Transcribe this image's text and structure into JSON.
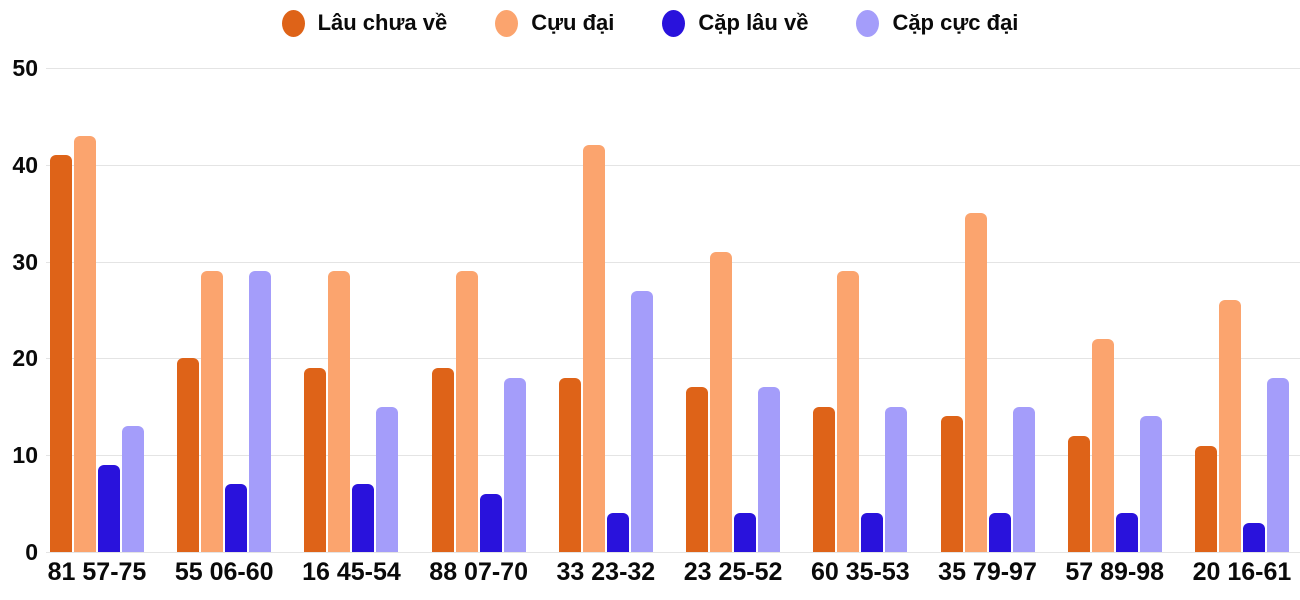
{
  "chart_data": {
    "type": "bar",
    "title": "",
    "xlabel": "",
    "ylabel": "",
    "categories": [
      "81 57-75",
      "55 06-60",
      "16 45-54",
      "88 07-70",
      "33 23-32",
      "23 25-52",
      "60 35-53",
      "35 79-97",
      "57 89-98",
      "20 16-61"
    ],
    "series": [
      {
        "name": "Lâu chưa về",
        "color": "#DE6318",
        "values": [
          41,
          20,
          19,
          19,
          18,
          17,
          15,
          14,
          12,
          11
        ]
      },
      {
        "name": "Cựu đại",
        "color": "#FBA46E",
        "values": [
          43,
          29,
          29,
          29,
          42,
          31,
          29,
          35,
          22,
          26
        ]
      },
      {
        "name": "Cặp lâu về",
        "color": "#2912DC",
        "values": [
          9,
          7,
          7,
          6,
          4,
          4,
          4,
          4,
          4,
          3
        ]
      },
      {
        "name": "Cặp cực đại",
        "color": "#A49DFA",
        "values": [
          13,
          29,
          15,
          18,
          27,
          17,
          15,
          15,
          14,
          18
        ]
      }
    ],
    "ylim": [
      0,
      50
    ],
    "yticks": [
      0,
      10,
      20,
      30,
      40,
      50
    ],
    "grid": "horizontal-only",
    "legend_position": "top-center",
    "colors": {
      "gridline": "#E4E4E4",
      "text": "#0A0A0A",
      "background": "#FFFFFF"
    }
  }
}
